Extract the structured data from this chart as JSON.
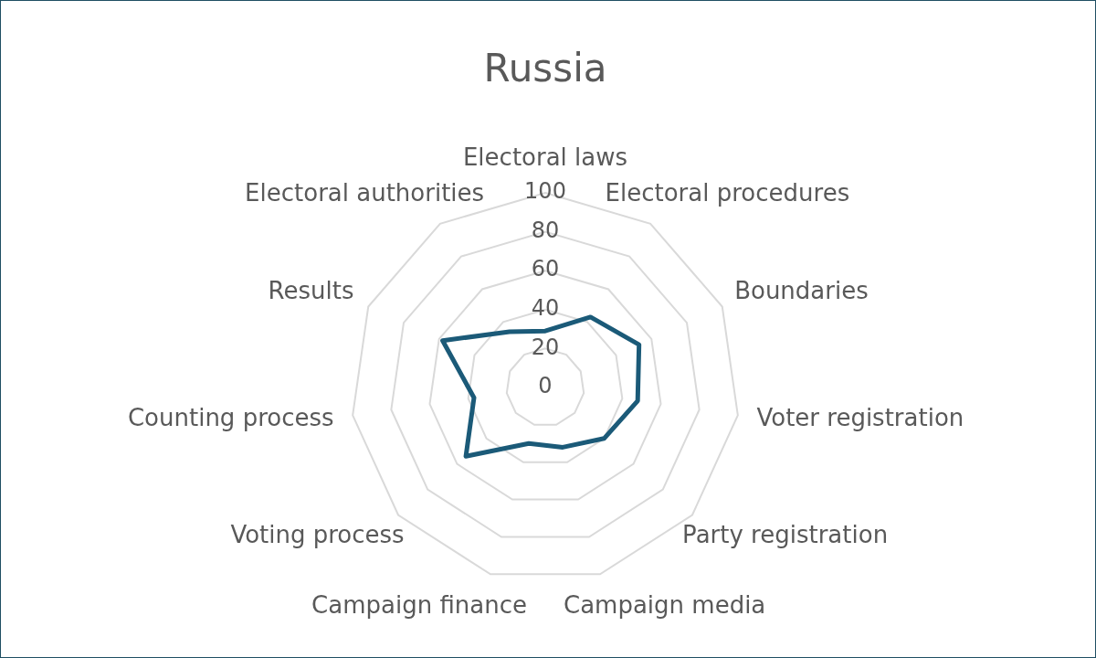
{
  "chart_data": {
    "type": "radar",
    "title": "Russia",
    "categories": [
      "Electoral laws",
      "Electoral procedures",
      "Boundaries",
      "Voter registration",
      "Party registration",
      "Campaign media",
      "Campaign finance",
      "Voting process",
      "Counting process",
      "Results",
      "Electoral authorities"
    ],
    "series": [
      {
        "color": "#1b5a78",
        "values": [
          29,
          43,
          53,
          48,
          40,
          32,
          30,
          54,
          37,
          58,
          34
        ]
      }
    ],
    "ylim": [
      0,
      100
    ],
    "yticks": [
      0,
      20,
      40,
      60,
      80,
      100
    ],
    "grid": true
  }
}
